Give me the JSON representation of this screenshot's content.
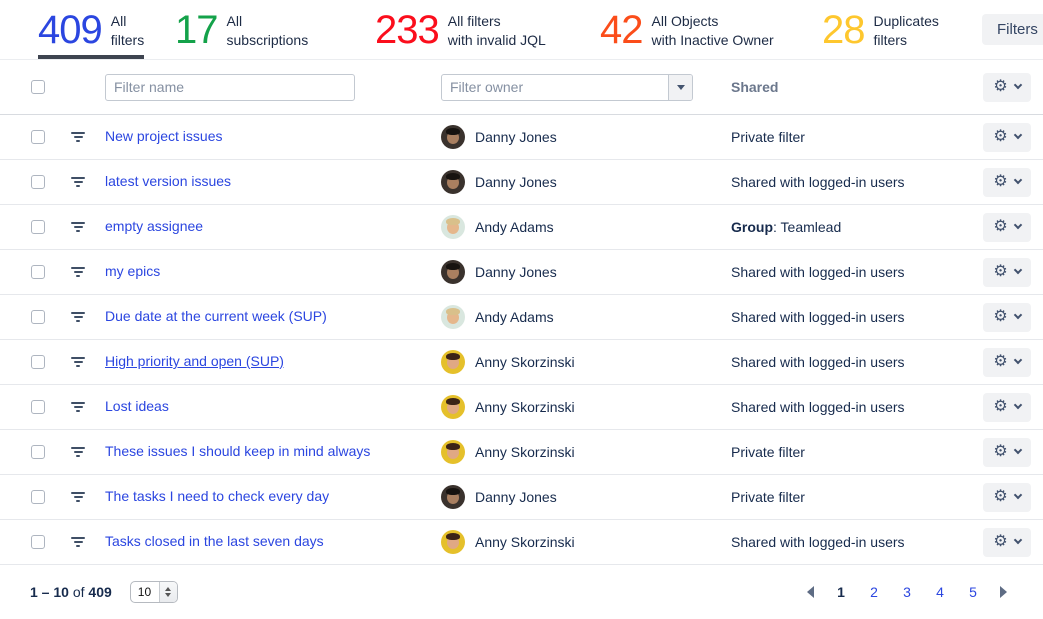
{
  "colors": {
    "link": "#2b46e0",
    "active_tab_underline": "#3e4450"
  },
  "stats": [
    {
      "value": "409",
      "label_line1": "All",
      "label_line2": "filters",
      "color": "#2b46e0",
      "active": true
    },
    {
      "value": "17",
      "label_line1": "All",
      "label_line2": "subscriptions",
      "color": "#14a24a",
      "active": false
    },
    {
      "value": "233",
      "label_line1": "All filters",
      "label_line2": "with invalid JQL",
      "color": "#fb0e1c",
      "active": false
    },
    {
      "value": "42",
      "label_line1": "All Objects",
      "label_line2": "with Inactive Owner",
      "color": "#fb4d1a",
      "active": false
    },
    {
      "value": "28",
      "label_line1": "Duplicates",
      "label_line2": "filters",
      "color": "#fec72e",
      "active": false
    }
  ],
  "filters_button_label": "Filters",
  "icons": {
    "gear": "⚙"
  },
  "table": {
    "name_filter_placeholder": "Filter name",
    "owner_filter_placeholder": "Filter owner",
    "shared_header": "Shared",
    "rows": [
      {
        "name": "New project issues",
        "owner": "Danny Jones",
        "shared_bold": "",
        "shared_text": "Private filter",
        "underlined": false
      },
      {
        "name": "latest version issues",
        "owner": "Danny Jones",
        "shared_bold": "",
        "shared_text": "Shared with logged-in users",
        "underlined": false
      },
      {
        "name": "empty assignee",
        "owner": "Andy Adams",
        "shared_bold": "Group",
        "shared_text": ": Teamlead",
        "underlined": false
      },
      {
        "name": "my epics",
        "owner": "Danny Jones",
        "shared_bold": "",
        "shared_text": "Shared with logged-in users",
        "underlined": false
      },
      {
        "name": "Due date at the current week (SUP)",
        "owner": "Andy Adams",
        "shared_bold": "",
        "shared_text": "Shared with logged-in users",
        "underlined": false
      },
      {
        "name": "High priority and open (SUP)",
        "owner": "Anny Skorzinski",
        "shared_bold": "",
        "shared_text": "Shared with logged-in users",
        "underlined": true
      },
      {
        "name": "Lost ideas",
        "owner": "Anny Skorzinski",
        "shared_bold": "",
        "shared_text": "Shared with logged-in users",
        "underlined": false
      },
      {
        "name": "These issues I should keep in mind always",
        "owner": "Anny Skorzinski",
        "shared_bold": "",
        "shared_text": "Private filter",
        "underlined": false
      },
      {
        "name": "The tasks I need to check every day",
        "owner": "Danny Jones",
        "shared_bold": "",
        "shared_text": "Private filter",
        "underlined": false
      },
      {
        "name": "Tasks closed in the last seven days",
        "owner": "Anny Skorzinski",
        "shared_bold": "",
        "shared_text": "Shared with logged-in users",
        "underlined": false
      }
    ]
  },
  "owners": {
    "Danny Jones": {
      "avatar_bg": "#3a322d",
      "avatar_face": "#a97f60",
      "avatar_hair": "#171310"
    },
    "Andy Adams": {
      "avatar_bg": "#d9e7df",
      "avatar_face": "#e5b78c",
      "avatar_hair": "#d9c08b"
    },
    "Anny Skorzinski": {
      "avatar_bg": "#e5c02b",
      "avatar_face": "#e0a884",
      "avatar_hair": "#3c2317"
    }
  },
  "pagination": {
    "range": "1 – 10",
    "of_label": "of",
    "total": "409",
    "page_size": "10",
    "pages": [
      "1",
      "2",
      "3",
      "4",
      "5"
    ],
    "current_page": "1"
  }
}
